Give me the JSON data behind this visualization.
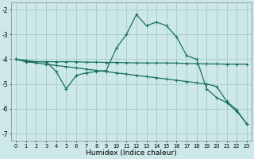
{
  "xlabel": "Humidex (Indice chaleur)",
  "background_color": "#cce8e8",
  "grid_color": "#aacece",
  "line_color": "#1a7060",
  "x_ticks": [
    0,
    1,
    2,
    3,
    4,
    5,
    6,
    7,
    8,
    9,
    10,
    11,
    12,
    13,
    14,
    15,
    16,
    17,
    18,
    19,
    20,
    21,
    22,
    23
  ],
  "ylim": [
    -7.3,
    -1.7
  ],
  "xlim": [
    -0.5,
    23.5
  ],
  "yticks": [
    -7,
    -6,
    -5,
    -4,
    -3,
    -2
  ],
  "series1": [
    -4.0,
    -4.05,
    -4.1,
    -4.1,
    -4.1,
    -4.1,
    -4.1,
    -4.12,
    -4.12,
    -4.13,
    -4.13,
    -4.14,
    -4.15,
    -4.15,
    -4.15,
    -4.15,
    -4.16,
    -4.17,
    -4.18,
    -4.19,
    -4.19,
    -4.2,
    -4.2,
    -4.2
  ],
  "series2": [
    -4.0,
    -4.1,
    -4.1,
    -4.1,
    -4.5,
    -5.2,
    -4.65,
    -4.55,
    -4.5,
    -4.45,
    -3.55,
    -3.0,
    -2.2,
    -2.65,
    -2.5,
    -2.65,
    -3.1,
    -3.85,
    -4.0,
    -5.2,
    -5.55,
    -5.75,
    -6.1,
    -6.6
  ],
  "series3": [
    -4.0,
    -4.1,
    -4.15,
    -4.2,
    -4.25,
    -4.3,
    -4.35,
    -4.4,
    -4.45,
    -4.5,
    -4.55,
    -4.6,
    -4.65,
    -4.7,
    -4.75,
    -4.8,
    -4.85,
    -4.9,
    -4.95,
    -5.0,
    -5.1,
    -5.7,
    -6.05,
    -6.62
  ]
}
